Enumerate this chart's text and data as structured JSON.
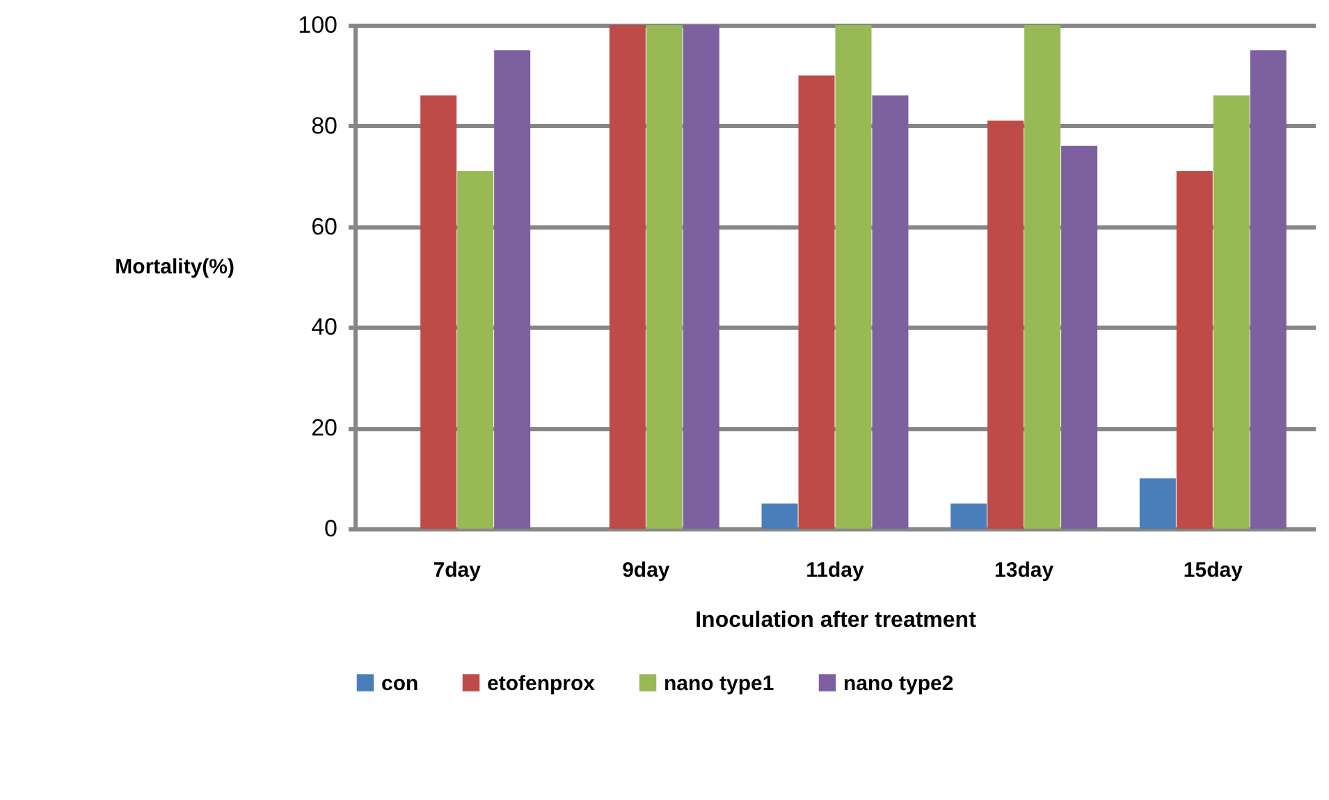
{
  "chart_data": {
    "type": "bar",
    "xlabel": "Inoculation after treatment",
    "ylabel": "Mortality(%)",
    "categories": [
      "7day",
      "9day",
      "11day",
      "13day",
      "15day"
    ],
    "series": [
      {
        "name": "con",
        "color": "#4a7ebb",
        "values": [
          0,
          0,
          5,
          5,
          10
        ]
      },
      {
        "name": "etofenprox",
        "color": "#be4b48",
        "values": [
          86,
          100,
          90,
          81,
          71
        ]
      },
      {
        "name": "nano type1",
        "color": "#98b954",
        "values": [
          71,
          100,
          100,
          100,
          86
        ]
      },
      {
        "name": "nano type2",
        "color": "#7d60a0",
        "values": [
          95,
          100,
          86,
          76,
          95
        ]
      }
    ],
    "ylim": [
      0,
      100
    ],
    "yticks": [
      0,
      20,
      40,
      60,
      80,
      100
    ],
    "grid": "y",
    "legend": "bottom"
  }
}
